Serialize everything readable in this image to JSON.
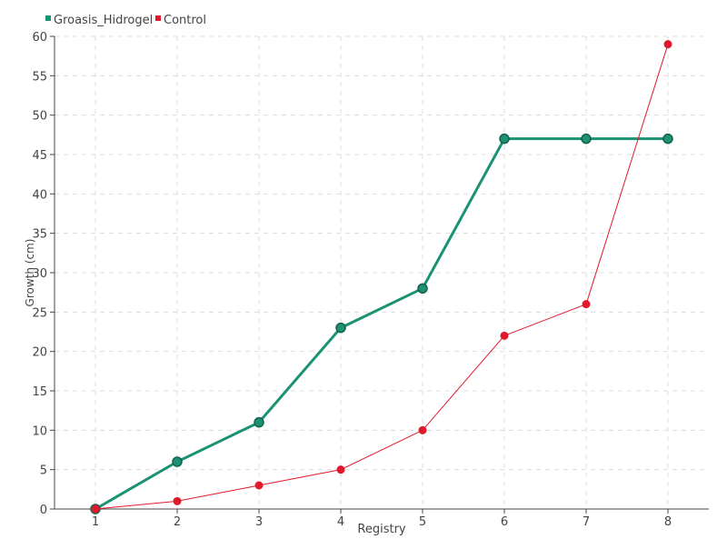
{
  "chart_data": {
    "type": "line",
    "xlabel": "Registry",
    "ylabel": "Growth (cm)",
    "x": [
      1,
      2,
      3,
      4,
      5,
      6,
      7,
      8
    ],
    "xlim": [
      0.5,
      8.5
    ],
    "ylim": [
      0,
      60
    ],
    "yticks": [
      0,
      5,
      10,
      15,
      20,
      25,
      30,
      35,
      40,
      45,
      50,
      55,
      60
    ],
    "grid": true,
    "legend_position": "top-left",
    "series": [
      {
        "name": "Groasis_Hidrogel",
        "color": "#1a9273",
        "values": [
          0,
          6,
          11,
          23,
          28,
          47,
          47,
          47
        ]
      },
      {
        "name": "Control",
        "color": "#e0192c",
        "values": [
          0,
          1,
          3,
          5,
          10,
          22,
          26,
          59
        ]
      }
    ]
  }
}
